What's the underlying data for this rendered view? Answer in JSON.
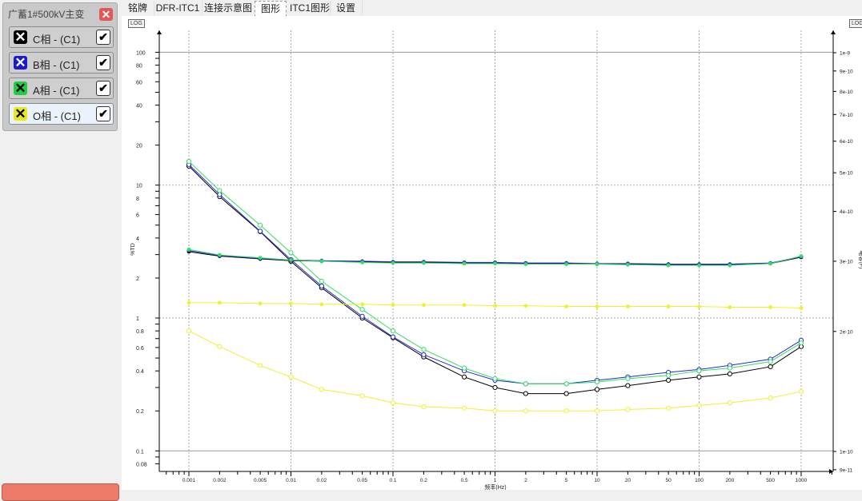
{
  "legend": {
    "title": "广蓄1#500kV主变",
    "close_icon": "close-icon",
    "items": [
      {
        "label": "C相 - (C1)",
        "color": "#000000",
        "checked": true,
        "selected": false
      },
      {
        "label": "B相 - (C1)",
        "color": "#1a1acc",
        "checked": true,
        "selected": false
      },
      {
        "label": "A相 - (C1)",
        "color": "#22cc44",
        "checked": true,
        "selected": false
      },
      {
        "label": "O相 - (C1)",
        "color": "#e8e820",
        "checked": true,
        "selected": true
      }
    ]
  },
  "tabs": [
    {
      "label": "铭牌",
      "active": false
    },
    {
      "label": "DFR-ITC1",
      "active": false
    },
    {
      "label": "连接示意图",
      "active": false
    },
    {
      "label": "图形",
      "active": true
    },
    {
      "label": "ITC1图形",
      "active": false
    },
    {
      "label": "设置",
      "active": false
    }
  ],
  "chart": {
    "log_left": "LOG",
    "log_right": "LOG"
  },
  "chart_data": {
    "type": "line",
    "xlabel": "频率(Hz)",
    "ylabel_left": "%TD",
    "ylabel_right": "电容(F)",
    "x_scale": "log",
    "y_left_scale": "log",
    "y_right_scale": "log",
    "xlim": [
      0.0005,
      2000
    ],
    "ylim_left": [
      0.07,
      146
    ],
    "ylim_right": [
      9e-11,
      1.1e-09
    ],
    "x_ticks": [
      "0.001",
      "0.002",
      "0.005",
      "0.01",
      "0.02",
      "0.05",
      "0.1",
      "0.2",
      "0.5",
      "1",
      "2",
      "5",
      "10",
      "20",
      "50",
      "100",
      "200",
      "500",
      "1000"
    ],
    "y_left_ticks": [
      "100",
      "80",
      "60",
      "40",
      "20",
      "10",
      "8",
      "6",
      "4",
      "2",
      "1",
      "0.8",
      "0.6",
      "0.4",
      "0.2",
      "0.1",
      "0.08"
    ],
    "y_right_ticks": [
      "1e-9",
      "9e-10",
      "8e-10",
      "7e-10",
      "6e-10",
      "5e-10",
      "4e-10",
      "3e-10",
      "2e-10",
      "1e-10",
      "9e-11"
    ],
    "x": [
      0.001,
      0.002,
      0.005,
      0.01,
      0.02,
      0.05,
      0.1,
      0.2,
      0.5,
      1,
      2,
      5,
      10,
      20,
      50,
      100,
      200,
      500,
      1000
    ],
    "series": [
      {
        "phase": "C",
        "color": "#000000",
        "axis": "left",
        "marker": "open",
        "values": [
          13.9,
          8.2,
          4.47,
          2.67,
          1.69,
          1.0,
          0.71,
          0.51,
          0.36,
          0.3,
          0.27,
          0.27,
          0.29,
          0.31,
          0.34,
          0.36,
          0.38,
          0.43,
          0.61
        ]
      },
      {
        "phase": "B",
        "color": "#2a2acc",
        "axis": "left",
        "marker": "open",
        "values": [
          14.3,
          8.5,
          4.5,
          2.75,
          1.74,
          1.03,
          0.72,
          0.53,
          0.4,
          0.34,
          0.32,
          0.32,
          0.34,
          0.36,
          0.39,
          0.41,
          0.44,
          0.49,
          0.68
        ]
      },
      {
        "phase": "A",
        "color": "#33dd66",
        "axis": "left",
        "marker": "open",
        "values": [
          15.1,
          9.1,
          5.0,
          3.1,
          1.89,
          1.16,
          0.8,
          0.58,
          0.42,
          0.35,
          0.32,
          0.32,
          0.33,
          0.35,
          0.37,
          0.4,
          0.42,
          0.47,
          0.65
        ]
      },
      {
        "phase": "O",
        "color": "#f0f030",
        "axis": "left",
        "marker": "open",
        "values": [
          0.8,
          0.61,
          0.44,
          0.36,
          0.29,
          0.26,
          0.23,
          0.215,
          0.21,
          0.2,
          0.2,
          0.2,
          0.2,
          0.205,
          0.21,
          0.22,
          0.23,
          0.25,
          0.28
        ]
      },
      {
        "phase": "C",
        "color": "#000000",
        "axis": "right",
        "marker": "filled",
        "values": [
          3.17e-10,
          3.09e-10,
          3.04e-10,
          3.01e-10,
          3e-10,
          2.99e-10,
          2.98e-10,
          2.98e-10,
          2.97e-10,
          2.97e-10,
          2.96e-10,
          2.96e-10,
          2.95e-10,
          2.95e-10,
          2.94e-10,
          2.94e-10,
          2.94e-10,
          2.96e-10,
          3.07e-10
        ]
      },
      {
        "phase": "B",
        "color": "#2a2acc",
        "axis": "right",
        "marker": "filled",
        "values": [
          3.19e-10,
          3.1e-10,
          3.05e-10,
          3.02e-10,
          3.01e-10,
          3e-10,
          2.99e-10,
          2.99e-10,
          2.98e-10,
          2.98e-10,
          2.97e-10,
          2.97e-10,
          2.96e-10,
          2.96e-10,
          2.95e-10,
          2.95e-10,
          2.95e-10,
          2.97e-10,
          3.08e-10
        ]
      },
      {
        "phase": "A",
        "color": "#33dd66",
        "axis": "right",
        "marker": "filled",
        "values": [
          3.21e-10,
          3.11e-10,
          3.06e-10,
          3.02e-10,
          3e-10,
          2.98e-10,
          2.97e-10,
          2.97e-10,
          2.96e-10,
          2.96e-10,
          2.95e-10,
          2.95e-10,
          2.95e-10,
          2.94e-10,
          2.93e-10,
          2.93e-10,
          2.93e-10,
          2.96e-10,
          3.09e-10
        ]
      },
      {
        "phase": "O",
        "color": "#f0f030",
        "axis": "right",
        "marker": "filled",
        "values": [
          2.36e-10,
          2.36e-10,
          2.35e-10,
          2.35e-10,
          2.34e-10,
          2.34e-10,
          2.33e-10,
          2.33e-10,
          2.33e-10,
          2.32e-10,
          2.32e-10,
          2.31e-10,
          2.31e-10,
          2.31e-10,
          2.31e-10,
          2.31e-10,
          2.3e-10,
          2.3e-10,
          2.29e-10
        ]
      }
    ]
  }
}
